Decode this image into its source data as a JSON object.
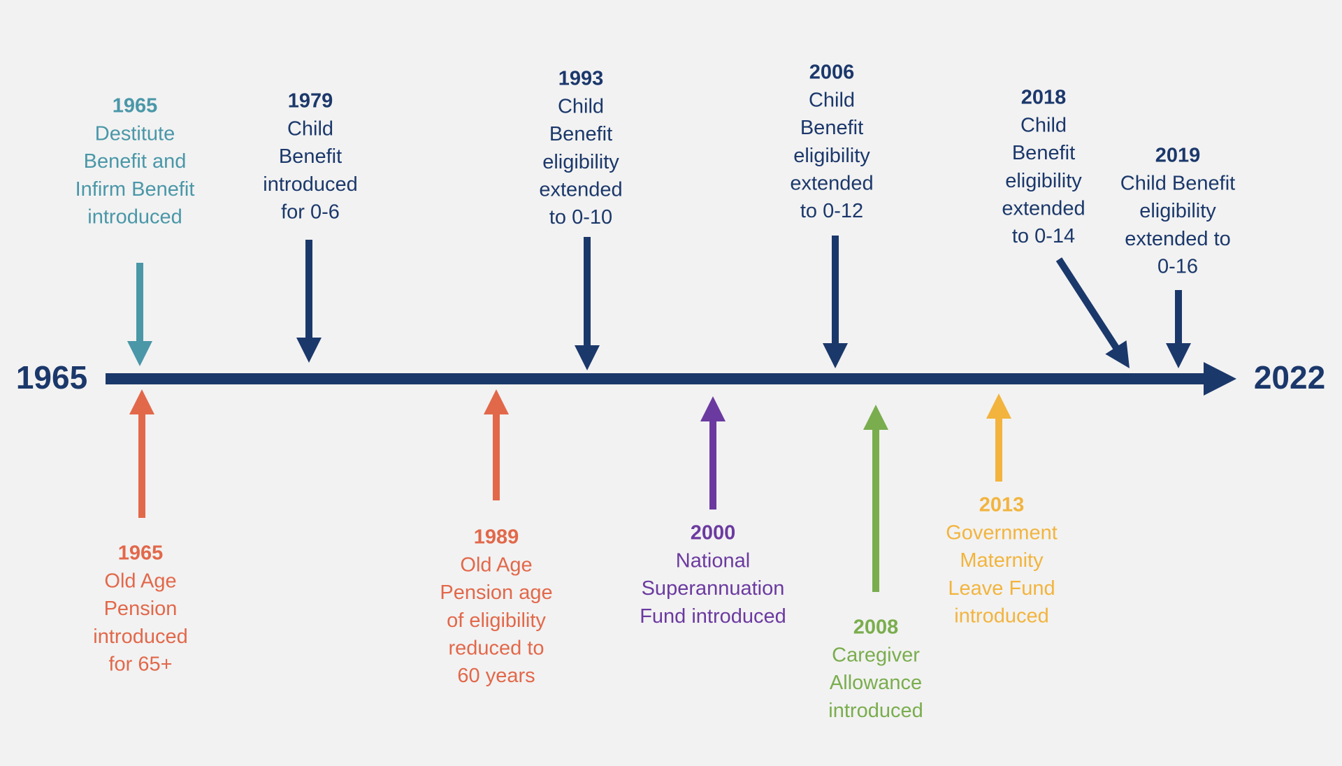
{
  "timeline": {
    "start": "1965",
    "end": "2022"
  },
  "events": [
    {
      "year": "1965",
      "lines": [
        "Destitute",
        "Benefit and",
        "Infirm Benefit",
        "introduced"
      ],
      "color": "#4a97a8"
    },
    {
      "year": "1979",
      "lines": [
        "Child",
        "Benefit",
        "introduced",
        "for 0-6"
      ],
      "color": "#1b386b"
    },
    {
      "year": "1993",
      "lines": [
        "Child",
        "Benefit",
        "eligibility",
        "extended",
        "to 0-10"
      ],
      "color": "#1b386b"
    },
    {
      "year": "2006",
      "lines": [
        "Child",
        "Benefit",
        "eligibility",
        "extended",
        "to 0-12"
      ],
      "color": "#1b386b"
    },
    {
      "year": "2018",
      "lines": [
        "Child",
        "Benefit",
        "eligibility",
        "extended",
        "to 0-14"
      ],
      "color": "#1b386b"
    },
    {
      "year": "2019",
      "lines": [
        "Child Benefit",
        "eligibility",
        "extended to",
        "0-16"
      ],
      "color": "#1b386b"
    },
    {
      "year": "1965",
      "lines": [
        "Old Age",
        "Pension",
        "introduced",
        "for 65+"
      ],
      "color": "#e2684a"
    },
    {
      "year": "1989",
      "lines": [
        "Old Age",
        "Pension age",
        "of eligibility",
        "reduced to",
        "60 years"
      ],
      "color": "#e2684a"
    },
    {
      "year": "2000",
      "lines": [
        "National",
        "Superannuation",
        "Fund introduced"
      ],
      "color": "#6b3aa0"
    },
    {
      "year": "2008",
      "lines": [
        "Caregiver",
        "Allowance",
        "introduced"
      ],
      "color": "#7aad4e"
    },
    {
      "year": "2013",
      "lines": [
        "Government",
        "Maternity",
        "Leave Fund",
        "introduced"
      ],
      "color": "#f2b43d"
    }
  ]
}
